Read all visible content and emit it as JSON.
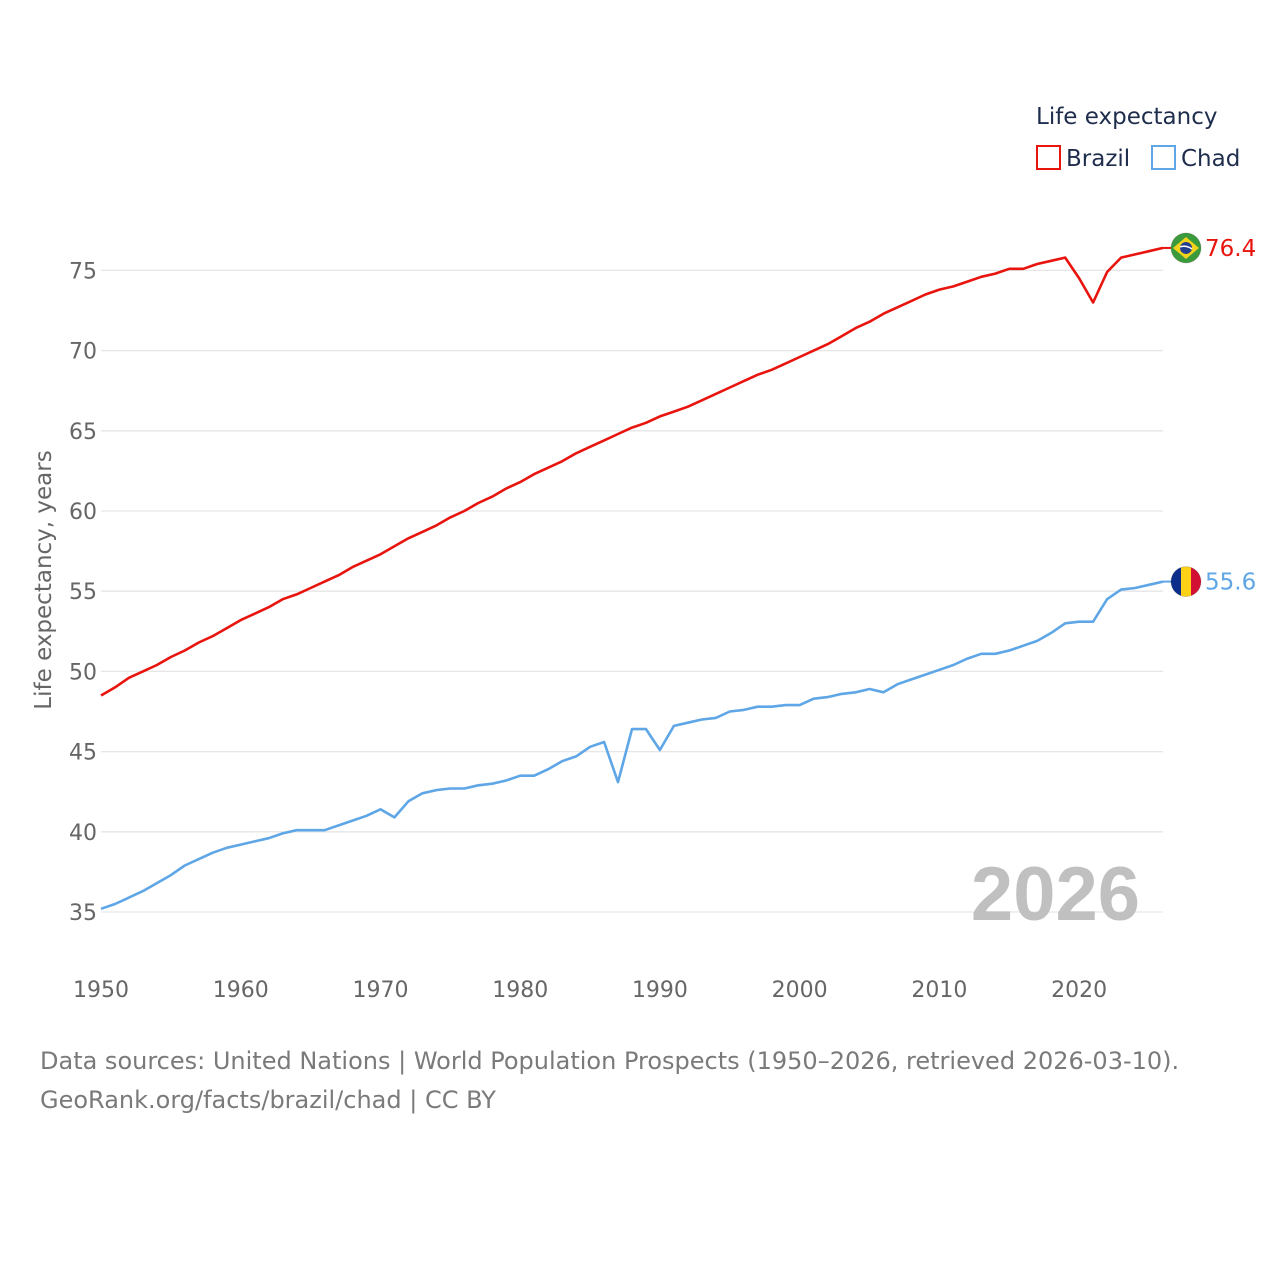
{
  "chart_data": {
    "type": "line",
    "ylabel": "Life expectancy, years",
    "xlabel": "",
    "xlim": [
      1950,
      2026
    ],
    "ylim": [
      32,
      78
    ],
    "x_ticks": [
      1950,
      1960,
      1970,
      1980,
      1990,
      2000,
      2010,
      2020
    ],
    "y_ticks": [
      35,
      40,
      45,
      50,
      55,
      60,
      65,
      70,
      75
    ],
    "grid": true,
    "legend_title": "Life expectancy",
    "legend_position": "top-right",
    "year_watermark": "2026",
    "x": [
      1950,
      1951,
      1952,
      1953,
      1954,
      1955,
      1956,
      1957,
      1958,
      1959,
      1960,
      1961,
      1962,
      1963,
      1964,
      1965,
      1966,
      1967,
      1968,
      1969,
      1970,
      1971,
      1972,
      1973,
      1974,
      1975,
      1976,
      1977,
      1978,
      1979,
      1980,
      1981,
      1982,
      1983,
      1984,
      1985,
      1986,
      1987,
      1988,
      1989,
      1990,
      1991,
      1992,
      1993,
      1994,
      1995,
      1996,
      1997,
      1998,
      1999,
      2000,
      2001,
      2002,
      2003,
      2004,
      2005,
      2006,
      2007,
      2008,
      2009,
      2010,
      2011,
      2012,
      2013,
      2014,
      2015,
      2016,
      2017,
      2018,
      2019,
      2020,
      2021,
      2022,
      2023,
      2024,
      2025,
      2026
    ],
    "series": [
      {
        "name": "Brazil",
        "color": "#e8140e",
        "end_label": "76.4",
        "flag": "brazil-flag",
        "values": [
          48.5,
          49.0,
          49.6,
          50.0,
          50.4,
          50.9,
          51.3,
          51.8,
          52.2,
          52.7,
          53.2,
          53.6,
          54.0,
          54.5,
          54.8,
          55.2,
          55.6,
          56.0,
          56.5,
          56.9,
          57.3,
          57.8,
          58.3,
          58.7,
          59.1,
          59.6,
          60.0,
          60.5,
          60.9,
          61.4,
          61.8,
          62.3,
          62.7,
          63.1,
          63.6,
          64.0,
          64.4,
          64.8,
          65.2,
          65.5,
          65.9,
          66.2,
          66.5,
          66.9,
          67.3,
          67.7,
          68.1,
          68.5,
          68.8,
          69.2,
          69.6,
          70.0,
          70.4,
          70.9,
          71.4,
          71.8,
          72.3,
          72.7,
          73.1,
          73.5,
          73.8,
          74.0,
          74.3,
          74.6,
          74.8,
          75.1,
          75.1,
          75.4,
          75.6,
          75.8,
          74.5,
          73.0,
          74.9,
          75.8,
          76.0,
          76.2,
          76.4
        ]
      },
      {
        "name": "Chad",
        "color": "#5ea6e6",
        "end_label": "55.6",
        "flag": "chad-flag",
        "values": [
          35.2,
          35.5,
          35.9,
          36.3,
          36.8,
          37.3,
          37.9,
          38.3,
          38.7,
          39.0,
          39.2,
          39.4,
          39.6,
          39.9,
          40.1,
          40.1,
          40.1,
          40.4,
          40.7,
          41.0,
          41.4,
          40.9,
          41.9,
          42.4,
          42.6,
          42.7,
          42.7,
          42.9,
          43.0,
          43.2,
          43.5,
          43.5,
          43.9,
          44.4,
          44.7,
          45.3,
          45.6,
          43.1,
          46.4,
          46.4,
          45.1,
          46.6,
          46.8,
          47.0,
          47.1,
          47.5,
          47.6,
          47.8,
          47.8,
          47.9,
          47.9,
          48.3,
          48.4,
          48.6,
          48.7,
          48.9,
          48.7,
          49.2,
          49.5,
          49.8,
          50.1,
          50.4,
          50.8,
          51.1,
          51.1,
          51.3,
          51.6,
          51.9,
          52.4,
          53.0,
          53.1,
          53.1,
          54.5,
          55.1,
          55.2,
          55.4,
          55.6
        ]
      }
    ]
  },
  "footer": {
    "line1": "Data sources: United Nations | World Population Prospects (1950–2026, retrieved 2026-03-10).",
    "line2": "GeoRank.org/facts/brazil/chad | CC BY"
  }
}
